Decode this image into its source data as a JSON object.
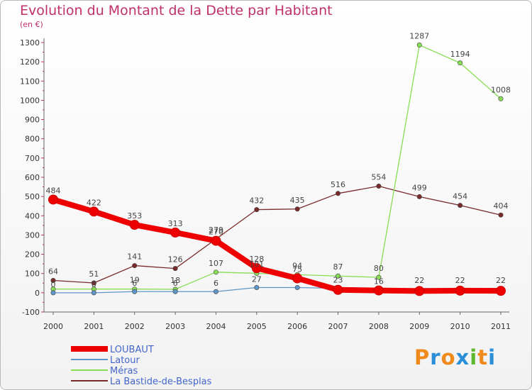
{
  "header": {
    "title": "Evolution du Montant de la Dette par Habitant",
    "unit": "(en €)"
  },
  "logo": {
    "text": "Proxiti",
    "colors": [
      "#f08a1c",
      "#2a8fd8",
      "#f08a1c",
      "#2a8fd8",
      "#5cb82e",
      "#f08a1c",
      "#2a8fd8"
    ]
  },
  "chart_data": {
    "type": "line",
    "title": "Evolution du Montant de la Dette par Habitant",
    "ylabel": "(en €)",
    "xlabel": "",
    "x": [
      "2000",
      "2001",
      "2002",
      "2003",
      "2004",
      "2005",
      "2006",
      "2007",
      "2008",
      "2009",
      "2010",
      "2011"
    ],
    "ylim": [
      -100,
      1300
    ],
    "yticks": [
      -100,
      0,
      100,
      200,
      300,
      400,
      500,
      600,
      700,
      800,
      900,
      1000,
      1100,
      1200,
      1300
    ],
    "grid": false,
    "legend": "bottom-left",
    "series": [
      {
        "name": "LOUBAUT",
        "color": "#ee0000",
        "values": [
          484,
          422,
          353,
          313,
          270,
          128,
          75,
          15,
          12,
          9,
          11,
          10
        ],
        "labels": [
          "484",
          "422",
          "353",
          "313",
          "270",
          "128",
          "75",
          "",
          "",
          "",
          "",
          ""
        ]
      },
      {
        "name": "Latour",
        "color": "#5f96c8",
        "values": [
          0,
          0,
          6,
          6,
          6,
          27,
          27,
          23,
          16,
          22,
          22,
          22
        ],
        "labels": [
          "0",
          "0",
          "6",
          "6",
          "6",
          "27",
          "",
          "23",
          "16",
          "22",
          "22",
          "22"
        ]
      },
      {
        "name": "Méras",
        "color": "#88dd55",
        "values": [
          19,
          19,
          19,
          18,
          107,
          101,
          94,
          87,
          80,
          1287,
          1194,
          1008
        ],
        "labels": [
          "",
          "",
          "19",
          "18",
          "107",
          "101",
          "94",
          "87",
          "80",
          "1287",
          "1194",
          "1008"
        ]
      },
      {
        "name": "La Bastide-de-Besplas",
        "color": "#7a2a2a",
        "values": [
          64,
          51,
          141,
          126,
          279,
          432,
          435,
          516,
          554,
          499,
          454,
          404
        ],
        "labels": [
          "64",
          "51",
          "141",
          "126",
          "279",
          "432",
          "435",
          "516",
          "554",
          "499",
          "454",
          "404"
        ]
      }
    ]
  }
}
